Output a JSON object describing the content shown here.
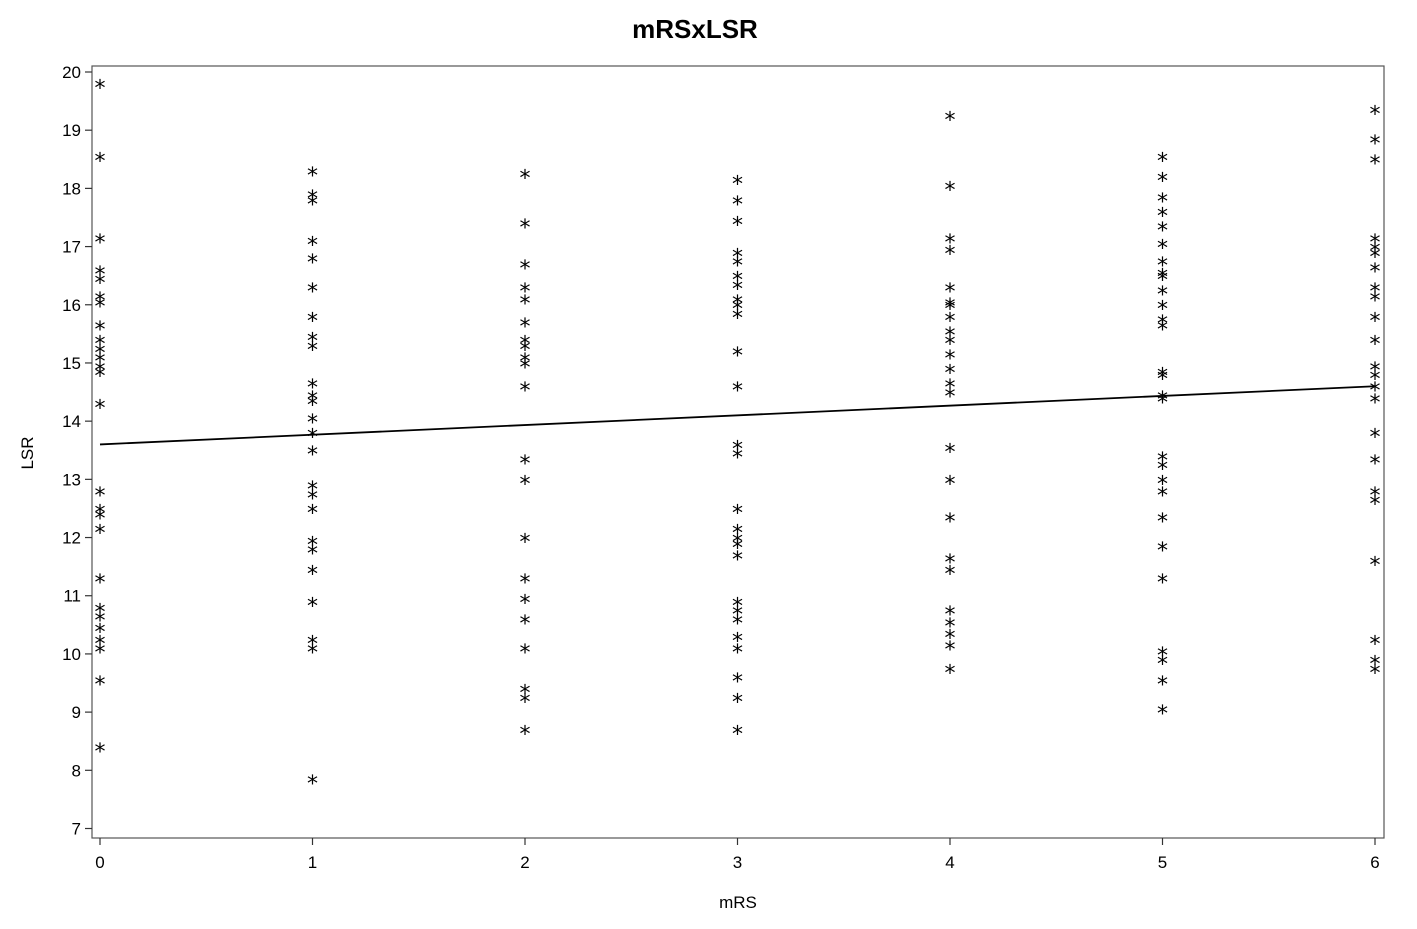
{
  "chart_data": {
    "type": "scatter",
    "title": "mRSxLSR",
    "xlabel": "mRS",
    "ylabel": "LSR",
    "xlim": [
      0,
      6
    ],
    "ylim": [
      7,
      20
    ],
    "x_ticks": [
      0,
      1,
      2,
      3,
      4,
      5,
      6
    ],
    "y_ticks": [
      7,
      8,
      9,
      10,
      11,
      12,
      13,
      14,
      15,
      16,
      17,
      18,
      19,
      20
    ],
    "marker": "*",
    "grid": false,
    "legend": "none",
    "series": [
      {
        "points": [
          [
            0,
            19.75
          ],
          [
            0,
            18.5
          ],
          [
            0,
            17.1
          ],
          [
            0,
            16.55
          ],
          [
            0,
            16.4
          ],
          [
            0,
            16.1
          ],
          [
            0,
            16.0
          ],
          [
            0,
            15.6
          ],
          [
            0,
            15.35
          ],
          [
            0,
            15.2
          ],
          [
            0,
            15.05
          ],
          [
            0,
            14.9
          ],
          [
            0,
            14.8
          ],
          [
            0,
            14.25
          ],
          [
            0,
            12.75
          ],
          [
            0,
            12.45
          ],
          [
            0,
            12.35
          ],
          [
            0,
            12.1
          ],
          [
            0,
            11.25
          ],
          [
            0,
            10.75
          ],
          [
            0,
            10.6
          ],
          [
            0,
            10.4
          ],
          [
            0,
            10.2
          ],
          [
            0,
            10.05
          ],
          [
            0,
            9.5
          ],
          [
            0,
            8.35
          ],
          [
            1,
            18.25
          ],
          [
            1,
            17.85
          ],
          [
            1,
            17.75
          ],
          [
            1,
            17.05
          ],
          [
            1,
            16.75
          ],
          [
            1,
            16.25
          ],
          [
            1,
            15.75
          ],
          [
            1,
            15.4
          ],
          [
            1,
            15.25
          ],
          [
            1,
            14.6
          ],
          [
            1,
            14.4
          ],
          [
            1,
            14.3
          ],
          [
            1,
            14.0
          ],
          [
            1,
            13.75
          ],
          [
            1,
            13.45
          ],
          [
            1,
            12.85
          ],
          [
            1,
            12.7
          ],
          [
            1,
            12.45
          ],
          [
            1,
            11.9
          ],
          [
            1,
            11.75
          ],
          [
            1,
            11.4
          ],
          [
            1,
            10.85
          ],
          [
            1,
            10.2
          ],
          [
            1,
            10.05
          ],
          [
            1,
            7.8
          ],
          [
            2,
            18.2
          ],
          [
            2,
            17.35
          ],
          [
            2,
            16.65
          ],
          [
            2,
            16.25
          ],
          [
            2,
            16.05
          ],
          [
            2,
            15.65
          ],
          [
            2,
            15.35
          ],
          [
            2,
            15.25
          ],
          [
            2,
            15.05
          ],
          [
            2,
            14.95
          ],
          [
            2,
            14.55
          ],
          [
            2,
            13.3
          ],
          [
            2,
            12.95
          ],
          [
            2,
            11.95
          ],
          [
            2,
            11.25
          ],
          [
            2,
            10.9
          ],
          [
            2,
            10.55
          ],
          [
            2,
            10.05
          ],
          [
            2,
            9.35
          ],
          [
            2,
            9.2
          ],
          [
            2,
            8.65
          ],
          [
            3,
            18.1
          ],
          [
            3,
            17.75
          ],
          [
            3,
            17.4
          ],
          [
            3,
            16.85
          ],
          [
            3,
            16.7
          ],
          [
            3,
            16.45
          ],
          [
            3,
            16.3
          ],
          [
            3,
            16.05
          ],
          [
            3,
            15.95
          ],
          [
            3,
            15.8
          ],
          [
            3,
            15.15
          ],
          [
            3,
            14.55
          ],
          [
            3,
            13.55
          ],
          [
            3,
            13.4
          ],
          [
            3,
            12.45
          ],
          [
            3,
            12.1
          ],
          [
            3,
            11.95
          ],
          [
            3,
            11.85
          ],
          [
            3,
            11.65
          ],
          [
            3,
            10.85
          ],
          [
            3,
            10.7
          ],
          [
            3,
            10.55
          ],
          [
            3,
            10.25
          ],
          [
            3,
            10.05
          ],
          [
            3,
            9.55
          ],
          [
            3,
            9.2
          ],
          [
            3,
            8.65
          ],
          [
            4,
            19.2
          ],
          [
            4,
            18.0
          ],
          [
            4,
            17.1
          ],
          [
            4,
            16.9
          ],
          [
            4,
            16.25
          ],
          [
            4,
            16.0
          ],
          [
            4,
            15.95
          ],
          [
            4,
            15.75
          ],
          [
            4,
            15.5
          ],
          [
            4,
            15.35
          ],
          [
            4,
            15.1
          ],
          [
            4,
            14.85
          ],
          [
            4,
            14.6
          ],
          [
            4,
            14.45
          ],
          [
            4,
            13.5
          ],
          [
            4,
            12.95
          ],
          [
            4,
            12.3
          ],
          [
            4,
            11.6
          ],
          [
            4,
            11.4
          ],
          [
            4,
            10.7
          ],
          [
            4,
            10.5
          ],
          [
            4,
            10.3
          ],
          [
            4,
            10.1
          ],
          [
            4,
            9.7
          ],
          [
            5,
            18.5
          ],
          [
            5,
            18.15
          ],
          [
            5,
            17.8
          ],
          [
            5,
            17.55
          ],
          [
            5,
            17.3
          ],
          [
            5,
            17.0
          ],
          [
            5,
            16.7
          ],
          [
            5,
            16.5
          ],
          [
            5,
            16.45
          ],
          [
            5,
            16.2
          ],
          [
            5,
            15.95
          ],
          [
            5,
            15.7
          ],
          [
            5,
            15.6
          ],
          [
            5,
            14.8
          ],
          [
            5,
            14.75
          ],
          [
            5,
            14.4
          ],
          [
            5,
            14.35
          ],
          [
            5,
            13.35
          ],
          [
            5,
            13.2
          ],
          [
            5,
            12.95
          ],
          [
            5,
            12.75
          ],
          [
            5,
            12.3
          ],
          [
            5,
            11.8
          ],
          [
            5,
            11.25
          ],
          [
            5,
            10.0
          ],
          [
            5,
            9.85
          ],
          [
            5,
            9.5
          ],
          [
            5,
            9.0
          ],
          [
            6,
            19.3
          ],
          [
            6,
            18.8
          ],
          [
            6,
            18.45
          ],
          [
            6,
            17.1
          ],
          [
            6,
            16.95
          ],
          [
            6,
            16.85
          ],
          [
            6,
            16.6
          ],
          [
            6,
            16.25
          ],
          [
            6,
            16.1
          ],
          [
            6,
            15.75
          ],
          [
            6,
            15.35
          ],
          [
            6,
            14.9
          ],
          [
            6,
            14.75
          ],
          [
            6,
            14.55
          ],
          [
            6,
            14.35
          ],
          [
            6,
            13.75
          ],
          [
            6,
            13.3
          ],
          [
            6,
            12.75
          ],
          [
            6,
            12.6
          ],
          [
            6,
            11.55
          ],
          [
            6,
            10.2
          ],
          [
            6,
            9.85
          ],
          [
            6,
            9.7
          ]
        ]
      }
    ],
    "fit_line": {
      "x": [
        0,
        6
      ],
      "y": [
        13.6,
        14.6
      ]
    }
  }
}
